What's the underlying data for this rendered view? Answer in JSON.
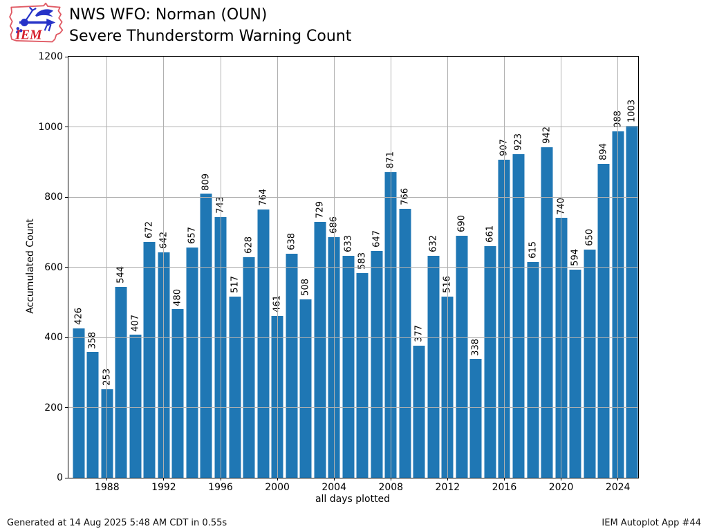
{
  "header": {
    "title_line1": "NWS WFO: Norman (OUN)",
    "title_line2": "Severe Thunderstorm Warning Count",
    "logo_text": "IEM"
  },
  "chart_data": {
    "type": "bar",
    "title": "NWS WFO: Norman (OUN)\nSevere Thunderstorm Warning Count",
    "categories": [
      1986,
      1987,
      1988,
      1989,
      1990,
      1991,
      1992,
      1993,
      1994,
      1995,
      1996,
      1997,
      1998,
      1999,
      2000,
      2001,
      2002,
      2003,
      2004,
      2005,
      2006,
      2007,
      2008,
      2009,
      2010,
      2011,
      2012,
      2013,
      2014,
      2015,
      2016,
      2017,
      2018,
      2019,
      2020,
      2021,
      2022,
      2023,
      2024,
      2025
    ],
    "values": [
      426,
      358,
      253,
      544,
      407,
      672,
      642,
      480,
      657,
      809,
      743,
      517,
      628,
      764,
      461,
      638,
      508,
      729,
      686,
      633,
      583,
      647,
      871,
      766,
      377,
      632,
      516,
      690,
      338,
      661,
      907,
      923,
      615,
      942,
      740,
      594,
      650,
      894,
      988,
      1003
    ],
    "xlabel": "all days plotted",
    "ylabel": "Accumulated Count",
    "ylim": [
      0,
      1200
    ],
    "yticks": [
      0,
      200,
      400,
      600,
      800,
      1000,
      1200
    ],
    "xticks": [
      1988,
      1992,
      1996,
      2000,
      2004,
      2008,
      2012,
      2016,
      2020,
      2024
    ],
    "xlim": [
      1985.28,
      2025.43
    ],
    "grid": true,
    "legend": "none",
    "value_labels": true,
    "colors": {
      "bar": "#1f77b4",
      "grid": "#b0b0b0",
      "spine": "#000000",
      "logo_red": "#e05a64",
      "logo_text_red": "#d6202e",
      "logo_blue": "#2633c8"
    }
  },
  "footer": {
    "generated": "Generated at 14 Aug 2025 5:48 AM CDT in 0.55s",
    "app": "IEM Autoplot App #44"
  }
}
